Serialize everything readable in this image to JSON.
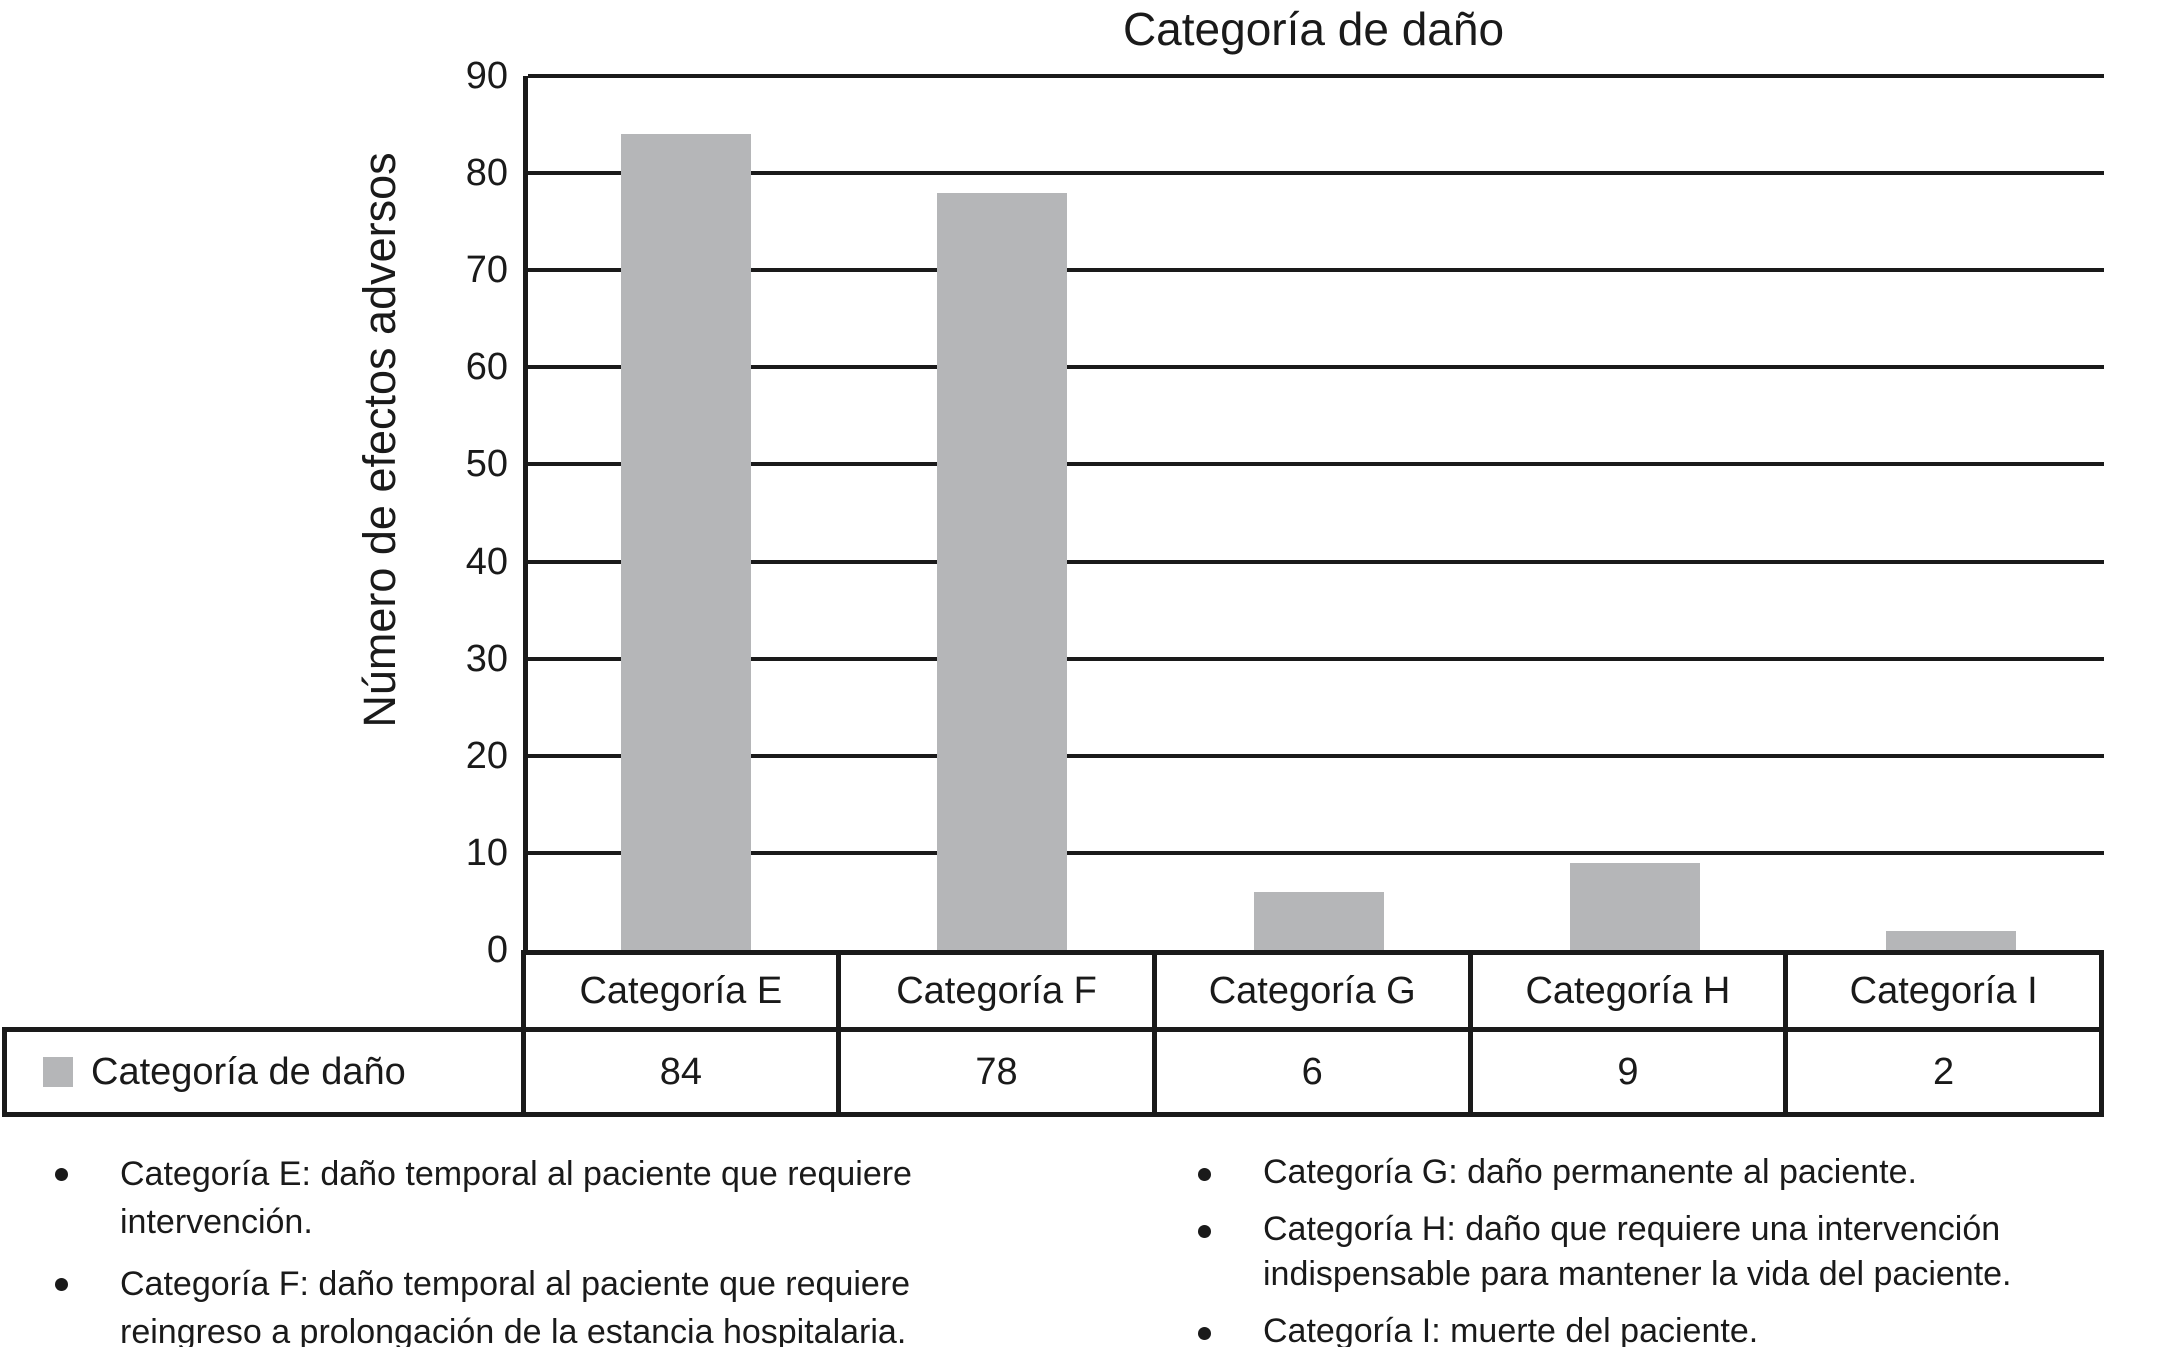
{
  "title": "Categoría de daño",
  "chart_data": {
    "type": "bar",
    "title": "Categoría de daño",
    "categories": [
      "Categoría E",
      "Categoría F",
      "Categoría G",
      "Categoría H",
      "Categoría I"
    ],
    "values": [
      84,
      78,
      6,
      9,
      2
    ],
    "series_name": "Categoría de daño",
    "xlabel": "",
    "ylabel": "Número de efectos adversos",
    "ylim": [
      0,
      90
    ],
    "yticks": [
      90,
      80,
      70,
      60,
      50,
      40,
      30,
      20,
      10,
      0
    ],
    "grid": true,
    "bar_color": "#b5b6b8",
    "axis_color": "#1a1a1a",
    "legend_position": "table-row-left",
    "data_table_shown": true
  },
  "table": {
    "legend_label": "Categoría de daño",
    "legend_marker": "gray-square",
    "legend_marker_color": "#b5b6b8",
    "headers": [
      "Categoría E",
      "Categoría F",
      "Categoría G",
      "Categoría H",
      "Categoría I"
    ],
    "values": [
      "84",
      "78",
      "6",
      "9",
      "2"
    ]
  },
  "notes": {
    "left": [
      {
        "lines": [
          "Categoría E: daño temporal al paciente que requiere",
          "intervención."
        ]
      },
      {
        "lines": [
          "Categoría F: daño temporal al paciente que requiere",
          "reingreso a prolongación de la estancia hospitalaria."
        ]
      }
    ],
    "right": [
      {
        "lines": [
          "Categoría G: daño permanente al paciente."
        ]
      },
      {
        "lines": [
          "Categoría H: daño que requiere una intervención",
          "indispensable para mantener la vida del paciente."
        ]
      },
      {
        "lines": [
          "Categoría I: muerte del paciente."
        ]
      }
    ]
  }
}
